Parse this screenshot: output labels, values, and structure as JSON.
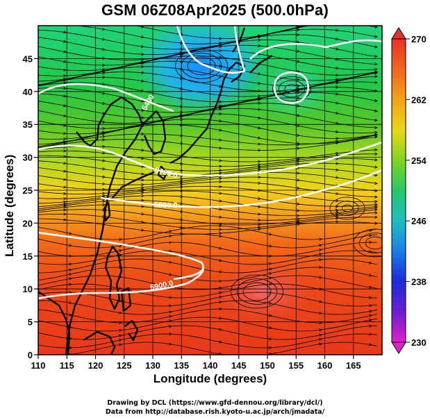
{
  "title": "GSM 06Z08Apr2025 (500.0hPa)",
  "axes": {
    "xlabel": "Longitude (degrees)",
    "ylabel": "Latitude  (degrees)",
    "xticks": [
      "110",
      "115",
      "120",
      "125",
      "130",
      "135",
      "140",
      "145",
      "150",
      "155",
      "160",
      "165"
    ],
    "yticks": [
      "0",
      "5",
      "10",
      "15",
      "20",
      "25",
      "30",
      "35",
      "40",
      "45"
    ]
  },
  "colorbar": {
    "labels": [
      "270",
      "262",
      "254",
      "246",
      "238",
      "230"
    ]
  },
  "contour_labels": {
    "c5400": "5400",
    "c5700": "5700.0",
    "c5800": "5800.0",
    "c5900": "5900.0"
  },
  "credits": {
    "line1": "Drawing by DCL (https://www.gfd-dennou.org/library/dcl/)",
    "line2": "Data from http://database.rish.kyoto-u.ac.jp/arch/jmadata/"
  },
  "chart_data": {
    "type": "heatmap",
    "title": "GSM 06Z08Apr2025 (500.0hPa)",
    "xlabel": "Longitude (degrees)",
    "ylabel": "Latitude  (degrees)",
    "xlim": [
      110,
      170
    ],
    "ylim": [
      0,
      50
    ],
    "colorbar_range": [
      230,
      270
    ],
    "colorbar_ticks": [
      230,
      238,
      246,
      254,
      262,
      270
    ],
    "contour_levels": [
      5400,
      5700,
      5800,
      5900
    ],
    "grid": true
  }
}
